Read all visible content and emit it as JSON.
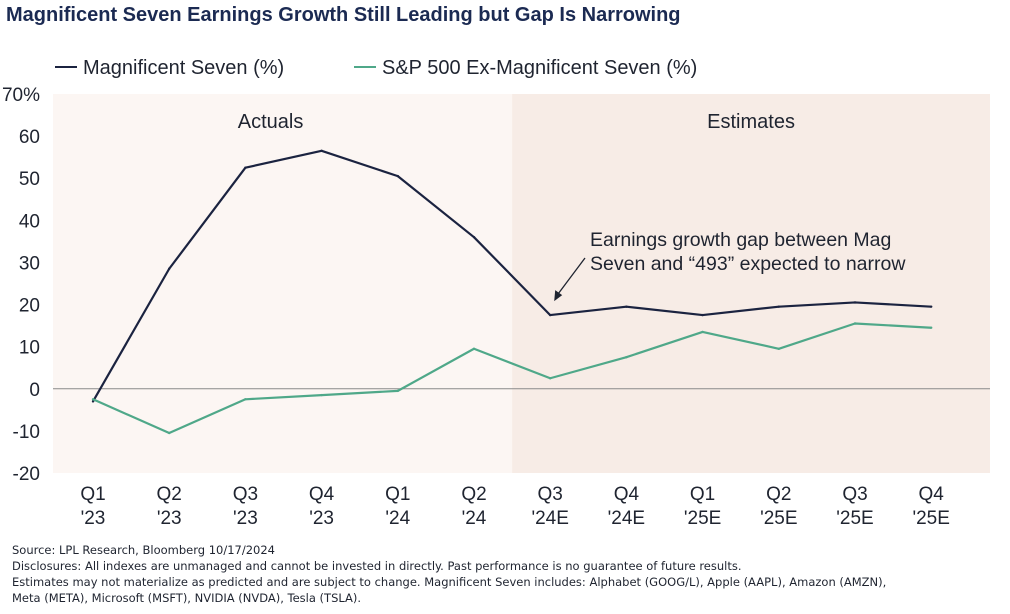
{
  "colors": {
    "mag7": "#1b2340",
    "ex_mag7": "#4fa889",
    "estimates_bg": "#f7ece6",
    "plot_bg": "#fcf6f3",
    "zero_line": "#8a8a8a"
  },
  "chart_data": {
    "type": "line",
    "title": "Magnificent Seven Earnings Growth Still Leading but Gap Is Narrowing",
    "categories": [
      [
        "Q1",
        "'23"
      ],
      [
        "Q2",
        "'23"
      ],
      [
        "Q3",
        "'23"
      ],
      [
        "Q4",
        "'23"
      ],
      [
        "Q1",
        "'24"
      ],
      [
        "Q2",
        "'24"
      ],
      [
        "Q3",
        "'24E"
      ],
      [
        "Q4",
        "'24E"
      ],
      [
        "Q1",
        "'25E"
      ],
      [
        "Q2",
        "'25E"
      ],
      [
        "Q3",
        "'25E"
      ],
      [
        "Q4",
        "'25E"
      ]
    ],
    "series": [
      {
        "name": "Magnificent Seven (%)",
        "color_key": "mag7",
        "values": [
          -3,
          28.5,
          52.5,
          56.5,
          50.5,
          36,
          17.5,
          19.5,
          17.5,
          19.5,
          20.5,
          19.5
        ]
      },
      {
        "name": "S&P 500 Ex-Magnificent Seven (%)",
        "color_key": "ex_mag7",
        "values": [
          -2.5,
          -10.5,
          -2.5,
          -1.5,
          -0.5,
          9.5,
          2.5,
          7.5,
          13.5,
          9.5,
          15.5,
          14.5
        ]
      }
    ],
    "ylim": [
      -20,
      70
    ],
    "yticks": [
      {
        "value": 70,
        "label": "70%"
      },
      {
        "value": 60,
        "label": "60"
      },
      {
        "value": 50,
        "label": "50"
      },
      {
        "value": 40,
        "label": "40"
      },
      {
        "value": 30,
        "label": "30"
      },
      {
        "value": 20,
        "label": "20"
      },
      {
        "value": 10,
        "label": "10"
      },
      {
        "value": 0,
        "label": "0"
      },
      {
        "value": -10,
        "label": "-10"
      },
      {
        "value": -20,
        "label": "-20"
      }
    ],
    "regions": [
      {
        "label": "Actuals",
        "start_index": 0,
        "end_index": 5
      },
      {
        "label": "Estimates",
        "start_index": 6,
        "end_index": 11
      }
    ],
    "annotation": {
      "lines": [
        "Earnings growth gap between Mag",
        "Seven and “493” expected to narrow"
      ],
      "points_to_index": 6
    },
    "legend_position": "top-left",
    "grid": false
  },
  "footnotes": [
    "Source: LPL Research, Bloomberg 10/17/2024",
    "Disclosures: All indexes are unmanaged and cannot be invested in directly. Past performance is no guarantee of future results.",
    "Estimates may not materialize as predicted and are subject to change. Magnificent Seven includes: Alphabet (GOOG/L), Apple (AAPL), Amazon (AMZN),",
    "Meta (META), Microsoft (MSFT), NVIDIA (NVDA), Tesla (TSLA)."
  ]
}
